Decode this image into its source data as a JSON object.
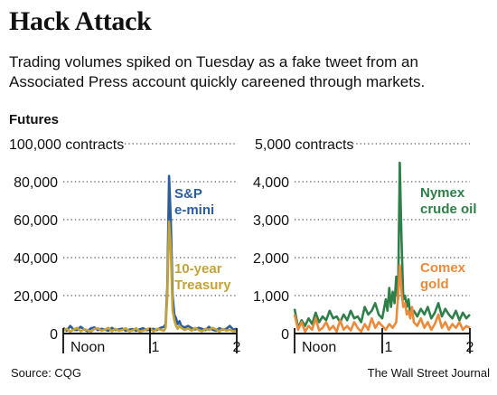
{
  "title": "Hack Attack",
  "subtitle": "Trading volumes spiked on Tuesday as a fake tweet from an Associated Press account quickly careened through markets.",
  "section_label": "Futures",
  "source": "Source: CQG",
  "credit": "The Wall Street Journal",
  "colors": {
    "sp": "#2b5d9a",
    "treasury": "#c4a339",
    "nymex": "#2f7f49",
    "comex": "#ec8a3b"
  },
  "chart_data": [
    {
      "type": "line",
      "unit": "contracts",
      "x_ticks": [
        "Noon",
        "1",
        "2"
      ],
      "x_range": [
        0,
        100
      ],
      "y_ticks": [
        "0",
        "20,000",
        "40,000",
        "60,000",
        "80,000",
        "100,000 contracts"
      ],
      "ylim": [
        0,
        100000
      ],
      "grid": true,
      "series": [
        {
          "name": "S&P e-mini",
          "label_lines": [
            "S&P",
            "e-mini"
          ],
          "color": "#2b5d9a",
          "x": [
            0,
            2,
            4,
            6,
            8,
            10,
            12,
            14,
            16,
            18,
            20,
            22,
            24,
            26,
            28,
            30,
            32,
            34,
            36,
            38,
            40,
            42,
            44,
            46,
            48,
            50,
            52,
            54,
            56,
            58,
            59,
            60,
            61,
            62,
            63,
            64,
            65,
            66,
            67,
            68,
            70,
            72,
            74,
            76,
            78,
            80,
            82,
            84,
            86,
            88,
            90,
            92,
            94,
            96,
            98,
            100
          ],
          "values": [
            3000,
            1500,
            4000,
            2000,
            1800,
            3500,
            2200,
            1200,
            2800,
            3200,
            1800,
            2500,
            2000,
            1500,
            3000,
            1800,
            2200,
            2600,
            1500,
            2000,
            2400,
            1500,
            2200,
            2800,
            1800,
            2000,
            2500,
            1800,
            3000,
            3500,
            5000,
            25000,
            83000,
            60000,
            20000,
            10000,
            8000,
            5000,
            6500,
            4000,
            3200,
            4000,
            2800,
            2200,
            3000,
            2500,
            1800,
            3500,
            2000,
            1500,
            2800,
            2000,
            2500,
            4000,
            2000,
            2500
          ]
        },
        {
          "name": "10-year Treasury",
          "label_lines": [
            "10-year",
            "Treasury"
          ],
          "color": "#c4a339",
          "x": [
            0,
            2,
            4,
            6,
            8,
            10,
            12,
            14,
            16,
            18,
            20,
            22,
            24,
            26,
            28,
            30,
            32,
            34,
            36,
            38,
            40,
            42,
            44,
            46,
            48,
            50,
            52,
            54,
            56,
            58,
            59,
            60,
            61,
            62,
            63,
            64,
            65,
            66,
            67,
            68,
            70,
            72,
            74,
            76,
            78,
            80,
            82,
            84,
            86,
            88,
            90,
            92,
            94,
            96,
            98,
            100
          ],
          "values": [
            1500,
            2500,
            1000,
            2000,
            3000,
            1200,
            2200,
            1800,
            1000,
            2500,
            2800,
            1500,
            2000,
            3000,
            1200,
            2500,
            1500,
            1800,
            2800,
            1200,
            1600,
            2800,
            1000,
            1500,
            2200,
            2800,
            1000,
            2500,
            2000,
            1500,
            3000,
            20000,
            59000,
            45000,
            12000,
            7000,
            4000,
            2500,
            4000,
            3000,
            1800,
            2800,
            1500,
            3000,
            1800,
            1200,
            2500,
            1800,
            3000,
            2200,
            1000,
            2500,
            1500,
            2000,
            1200,
            1500
          ]
        }
      ]
    },
    {
      "type": "line",
      "unit": "contracts",
      "x_ticks": [
        "Noon",
        "1",
        "2"
      ],
      "x_range": [
        0,
        100
      ],
      "y_ticks": [
        "0",
        "1,000",
        "2,000",
        "3,000",
        "4,000",
        "5,000 contracts"
      ],
      "ylim": [
        0,
        5000
      ],
      "grid": true,
      "series": [
        {
          "name": "Nymex crude oil",
          "label_lines": [
            "Nymex",
            "crude oil"
          ],
          "color": "#2f7f49",
          "x": [
            0,
            2,
            4,
            6,
            8,
            10,
            12,
            14,
            16,
            18,
            20,
            22,
            24,
            26,
            28,
            30,
            32,
            34,
            36,
            38,
            40,
            42,
            44,
            46,
            48,
            50,
            52,
            53,
            54,
            55,
            56,
            57,
            58,
            59,
            60,
            61,
            62,
            63,
            64,
            65,
            66,
            68,
            70,
            72,
            74,
            76,
            78,
            80,
            82,
            84,
            86,
            88,
            90,
            92,
            94,
            96,
            98,
            100
          ],
          "values": [
            650,
            150,
            350,
            200,
            400,
            250,
            550,
            300,
            450,
            350,
            600,
            400,
            450,
            300,
            500,
            350,
            600,
            400,
            450,
            300,
            700,
            500,
            600,
            800,
            500,
            400,
            900,
            600,
            1200,
            700,
            1100,
            800,
            1500,
            900,
            4500,
            2500,
            900,
            1000,
            700,
            900,
            500,
            600,
            450,
            650,
            500,
            700,
            400,
            550,
            800,
            450,
            650,
            500,
            400,
            600,
            350,
            550,
            400,
            500
          ]
        },
        {
          "name": "Comex gold",
          "label_lines": [
            "Comex",
            "gold"
          ],
          "color": "#ec8a3b",
          "x": [
            0,
            2,
            4,
            6,
            8,
            10,
            12,
            14,
            16,
            18,
            20,
            22,
            24,
            26,
            28,
            30,
            32,
            34,
            36,
            38,
            40,
            42,
            44,
            46,
            48,
            50,
            52,
            54,
            56,
            58,
            59,
            60,
            61,
            62,
            63,
            64,
            65,
            66,
            67,
            68,
            70,
            72,
            74,
            76,
            78,
            80,
            82,
            84,
            86,
            88,
            90,
            92,
            94,
            96,
            98,
            100
          ],
          "values": [
            500,
            100,
            300,
            50,
            200,
            100,
            400,
            80,
            150,
            300,
            100,
            200,
            50,
            350,
            100,
            200,
            80,
            300,
            150,
            50,
            250,
            100,
            400,
            150,
            300,
            200,
            100,
            250,
            150,
            300,
            1000,
            1800,
            1100,
            700,
            800,
            500,
            600,
            400,
            700,
            300,
            200,
            400,
            150,
            300,
            100,
            250,
            500,
            150,
            300,
            100,
            250,
            150,
            300,
            100,
            200,
            150
          ]
        }
      ]
    }
  ]
}
